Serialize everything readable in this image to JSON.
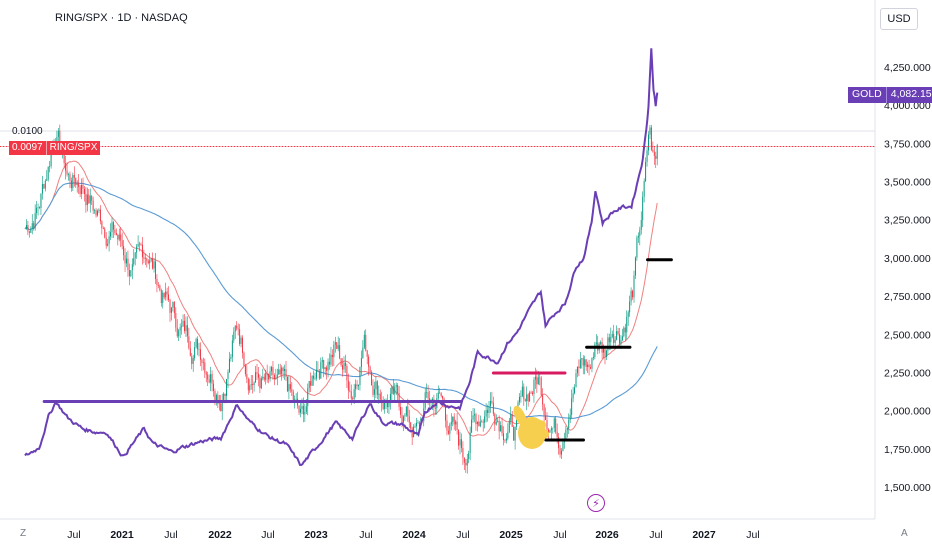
{
  "header": {
    "title": "RING/SPX · 1D · NASDAQ",
    "currency": "USD"
  },
  "ratio": {
    "label": "0.0100",
    "badge_value": "0.0097",
    "badge_name": "RING/SPX"
  },
  "gold_badge": {
    "name": "GOLD",
    "value": "4,082.159"
  },
  "zoom": {
    "left": "Z",
    "right": "A"
  },
  "chart_data": {
    "type": "line",
    "title": "RING/SPX · 1D · NASDAQ",
    "y_axis": {
      "label": "USD",
      "ticks": [
        "4,250.000",
        "4,000.000",
        "3,750.000",
        "3,500.000",
        "3,250.000",
        "3,000.000",
        "2,750.000",
        "2,500.000",
        "2,250.000",
        "2,000.000",
        "1,750.000",
        "1,500.000"
      ],
      "range": [
        1450,
        4380
      ]
    },
    "x_axis": {
      "ticks": [
        "Jul",
        "2021",
        "Jul",
        "2022",
        "Jul",
        "2023",
        "Jul",
        "2024",
        "Jul",
        "2025",
        "Jul",
        "2026",
        "Jul",
        "2027",
        "Jul"
      ],
      "bold": [
        "2021",
        "2022",
        "2023",
        "2024",
        "2025",
        "2026",
        "2027"
      ],
      "range": [
        "2020-05-01",
        "2027-12-31"
      ]
    },
    "series": [
      {
        "name": "GOLD",
        "color": "#6a3fb5",
        "x": [
          "2020-05-01",
          "2020-06-15",
          "2020-07-15",
          "2020-08-07",
          "2020-09-15",
          "2020-11-01",
          "2020-12-15",
          "2021-01-15",
          "2021-03-10",
          "2021-05-15",
          "2021-06-15",
          "2021-08-10",
          "2021-09-15",
          "2021-11-15",
          "2022-01-15",
          "2022-03-08",
          "2022-04-15",
          "2022-06-15",
          "2022-08-10",
          "2022-09-28",
          "2022-11-15",
          "2023-01-15",
          "2023-03-10",
          "2023-05-04",
          "2023-06-15",
          "2023-08-15",
          "2023-10-06",
          "2023-10-27",
          "2023-12-04",
          "2024-01-15",
          "2024-02-15",
          "2024-03-15",
          "2024-04-12",
          "2024-05-15",
          "2024-06-15",
          "2024-07-15",
          "2024-08-15",
          "2024-09-15",
          "2024-10-30",
          "2024-11-14",
          "2024-12-15",
          "2025-01-15",
          "2025-02-20",
          "2025-03-15",
          "2025-04-10",
          "2025-04-22",
          "2025-05-15",
          "2025-06-15",
          "2025-07-15",
          "2025-08-15",
          "2025-09-01",
          "2025-09-20",
          "2025-10-01",
          "2025-10-08",
          "2025-10-17",
          "2025-10-24",
          "2025-10-31",
          "2025-11-05"
        ],
        "values": [
          1700,
          1760,
          1960,
          2060,
          1950,
          1880,
          1860,
          1860,
          1700,
          1880,
          1780,
          1730,
          1760,
          1800,
          1820,
          2040,
          1930,
          1830,
          1780,
          1640,
          1760,
          1920,
          1820,
          2050,
          1920,
          1910,
          1830,
          1990,
          2060,
          2030,
          2020,
          2170,
          2380,
          2350,
          2320,
          2440,
          2510,
          2630,
          2780,
          2560,
          2640,
          2700,
          2950,
          3000,
          3230,
          3450,
          3230,
          3300,
          3330,
          3340,
          3480,
          3650,
          3850,
          4000,
          4380,
          4100,
          4000,
          4082.159
        ]
      },
      {
        "name": "RING/SPX",
        "color": "#f23645",
        "x": [
          "2020-05-01",
          "2020-06-15",
          "2020-07-15",
          "2020-08-05",
          "2020-09-15",
          "2020-11-01",
          "2020-12-15",
          "2021-02-15",
          "2021-04-15",
          "2021-05-25",
          "2021-07-15",
          "2021-09-15",
          "2021-11-15",
          "2022-01-15",
          "2022-03-10",
          "2022-04-15",
          "2022-06-15",
          "2022-08-15",
          "2022-09-28",
          "2022-11-15",
          "2023-01-15",
          "2023-03-10",
          "2023-04-15",
          "2023-05-20",
          "2023-06-15",
          "2023-08-15",
          "2023-10-06",
          "2023-10-27",
          "2023-12-15",
          "2024-01-15",
          "2024-02-28",
          "2024-03-25",
          "2024-05-20",
          "2024-06-15",
          "2024-08-05",
          "2024-09-25",
          "2024-10-22",
          "2024-11-15",
          "2024-12-30",
          "2025-01-20",
          "2025-03-10",
          "2025-04-10",
          "2025-04-22",
          "2025-05-20",
          "2025-06-15",
          "2025-07-15",
          "2025-08-20",
          "2025-09-15",
          "2025-10-01",
          "2025-10-10",
          "2025-10-20",
          "2025-10-31",
          "2025-11-05"
        ],
        "values": [
          0.0081,
          0.0086,
          0.0094,
          0.0101,
          0.0091,
          0.009,
          0.0084,
          0.008,
          0.0072,
          0.0077,
          0.0068,
          0.0061,
          0.0058,
          0.005,
          0.0062,
          0.0054,
          0.005,
          0.0049,
          0.0043,
          0.0055,
          0.0058,
          0.005,
          0.006,
          0.0052,
          0.0049,
          0.0046,
          0.0041,
          0.0047,
          0.0048,
          0.0043,
          0.0037,
          0.0043,
          0.0048,
          0.0046,
          0.0042,
          0.005,
          0.0052,
          0.0047,
          0.0041,
          0.0047,
          0.0055,
          0.0054,
          0.006,
          0.0057,
          0.0063,
          0.0062,
          0.0069,
          0.0083,
          0.0092,
          0.01,
          0.0095,
          0.0093,
          0.0097
        ]
      }
    ],
    "annotations": [
      {
        "type": "hline",
        "color": "#6a3fb5",
        "from": "2020-07-01",
        "to": "2024-02-20",
        "series": "GOLD",
        "value": 2060
      },
      {
        "type": "hline",
        "color": "#d81b60",
        "from": "2024-06-01",
        "to": "2025-01-15",
        "series": "RING/SPX",
        "value": 0.0053
      },
      {
        "type": "hline",
        "color": "#000000",
        "from": "2024-11-15",
        "to": "2025-03-15",
        "series": "RING/SPX",
        "value": 0.004
      },
      {
        "type": "hline",
        "color": "#000000",
        "from": "2025-03-25",
        "to": "2025-08-10",
        "series": "RING/SPX",
        "value": 0.0058
      },
      {
        "type": "hline",
        "color": "#000000",
        "from": "2025-10-05",
        "to": "2025-12-20",
        "series": "RING/SPX",
        "value": 0.0075
      },
      {
        "type": "hline",
        "color": "#f23645",
        "from": "2020-05-01",
        "to": "2027-12-31",
        "series": "RING/SPX",
        "value": 0.0097,
        "style": "dotted"
      }
    ],
    "grid": false,
    "legend": "none"
  }
}
